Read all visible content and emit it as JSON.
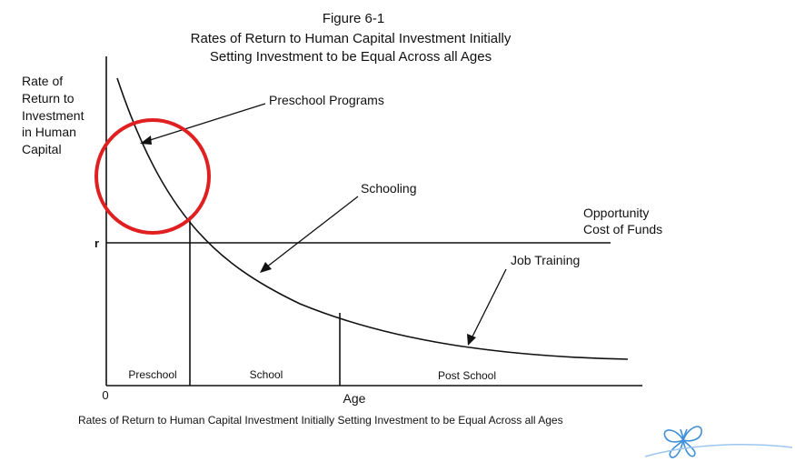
{
  "figure": {
    "number": "Figure 6-1",
    "title_line1": "Rates of Return to Human Capital Investment Initially",
    "title_line2": "Setting Investment to be Equal Across all Ages",
    "caption": "Rates of Return to Human Capital Investment Initially Setting Investment to be Equal Across all Ages"
  },
  "axes": {
    "ylabel_lines": [
      "Rate of",
      "Return to",
      "Investment",
      "in Human",
      "Capital"
    ],
    "xlabel": "Age",
    "origin_label": "0",
    "r_label": "r"
  },
  "labels": {
    "preschool_programs": "Preschool Programs",
    "schooling": "Schooling",
    "job_training": "Job Training",
    "opportunity_cost_line1": "Opportunity",
    "opportunity_cost_line2": "Cost of Funds"
  },
  "regions": {
    "preschool": "Preschool",
    "school": "School",
    "post_school": "Post School"
  },
  "colors": {
    "ink": "#111111",
    "highlight_circle": "#e02020",
    "butterfly": "#3f8fd8"
  },
  "decorations": {
    "highlight": "red-circle",
    "logo": "butterfly-icon"
  }
}
